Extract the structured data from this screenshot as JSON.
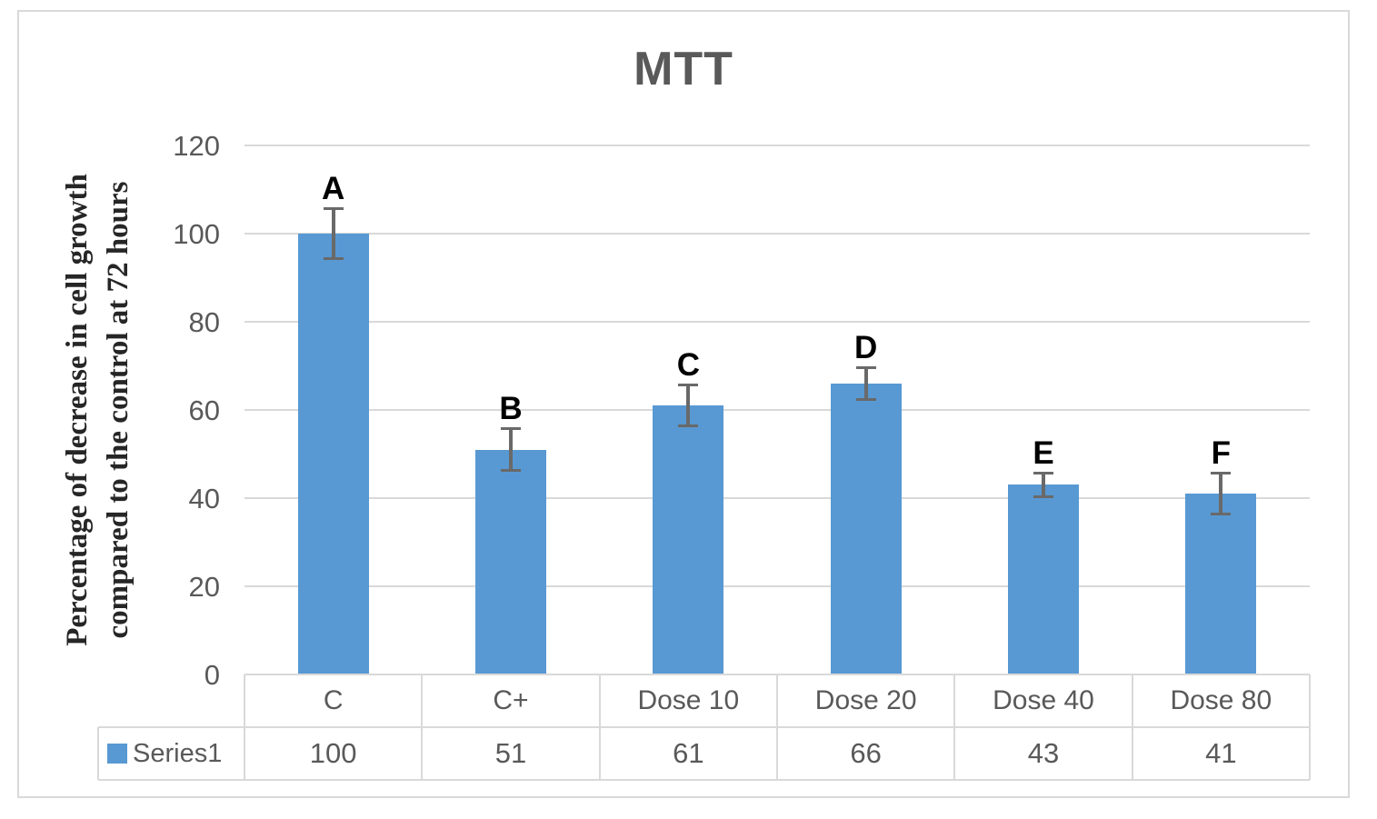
{
  "chart_data": {
    "type": "bar",
    "title": "MTT",
    "ylabel_line1": "Percentage of decrease in cell growth",
    "ylabel_line2": "compared  to the control at 72 hours",
    "categories": [
      "C",
      "C+",
      "Dose 10",
      "Dose 20",
      "Dose 40",
      "Dose 80"
    ],
    "series": [
      {
        "name": "Series1",
        "values": [
          100,
          51,
          61,
          66,
          43,
          41
        ]
      }
    ],
    "error_bars": [
      6,
      5,
      5,
      4,
      3,
      5
    ],
    "bar_letters": [
      "A",
      "B",
      "C",
      "D",
      "E",
      "F"
    ],
    "yticks": [
      0,
      20,
      40,
      60,
      80,
      100,
      120
    ],
    "ylim": [
      0,
      120
    ],
    "grid": true,
    "legend_position": "data-table-left",
    "colors": {
      "bar_fill": "#5899d3",
      "error_bar": "#696969",
      "gridline": "#d9d9d9",
      "table_border": "#d9d9d9",
      "axis_text": "#595959",
      "title_text": "#595959",
      "letter_text": "#000000"
    }
  }
}
